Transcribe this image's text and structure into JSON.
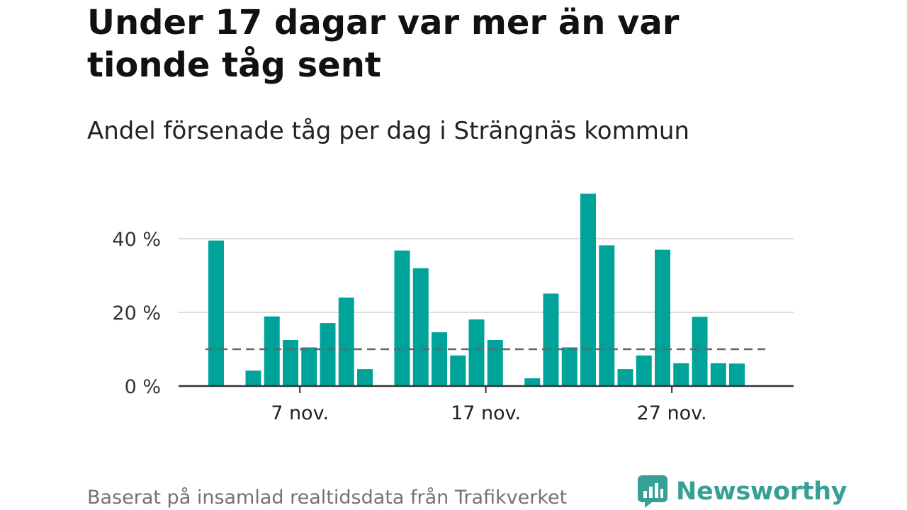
{
  "title": "Under 17 dagar var mer än var tionde tåg sent",
  "subtitle": "Andel försenade tåg per dag i Strängnäs kommun",
  "footer": "Baserat på insamlad realtidsdata från Trafikverket",
  "brand": {
    "name": "Newsworthy",
    "icon": "newsworthy-logo-icon",
    "color": "#36a096"
  },
  "colors": {
    "bar": "#00a39a",
    "grid": "#dddddd",
    "axis": "#333333",
    "reference_line": "#666666"
  },
  "chart_data": {
    "type": "bar",
    "title": "",
    "xlabel": "",
    "ylabel": "",
    "x": [
      "2 nov.",
      "3 nov.",
      "4 nov.",
      "5 nov.",
      "6 nov.",
      "7 nov.",
      "8 nov.",
      "9 nov.",
      "10 nov.",
      "11 nov.",
      "12 nov.",
      "13 nov.",
      "14 nov.",
      "15 nov.",
      "16 nov.",
      "17 nov.",
      "18 nov.",
      "19 nov.",
      "20 nov.",
      "21 nov.",
      "22 nov.",
      "23 nov.",
      "24 nov.",
      "25 nov.",
      "26 nov.",
      "27 nov.",
      "28 nov.",
      "29 nov.",
      "30 nov."
    ],
    "values": [
      39.5,
      0,
      4.2,
      18.9,
      12.5,
      10.5,
      17.1,
      24.0,
      4.6,
      0,
      36.8,
      32.0,
      14.6,
      8.3,
      18.1,
      12.5,
      0,
      2.1,
      25.1,
      10.5,
      52.2,
      38.2,
      4.6,
      8.3,
      37.0,
      6.2,
      18.8,
      6.2,
      6.1
    ],
    "reference_line": 10,
    "ylim": [
      0,
      52
    ],
    "yticks": [
      0,
      20,
      40
    ],
    "ytick_labels": [
      "0 %",
      "20 %",
      "40 %"
    ],
    "xticks": [
      "7 nov.",
      "17 nov.",
      "27 nov."
    ],
    "grid": true,
    "legend": "none"
  }
}
